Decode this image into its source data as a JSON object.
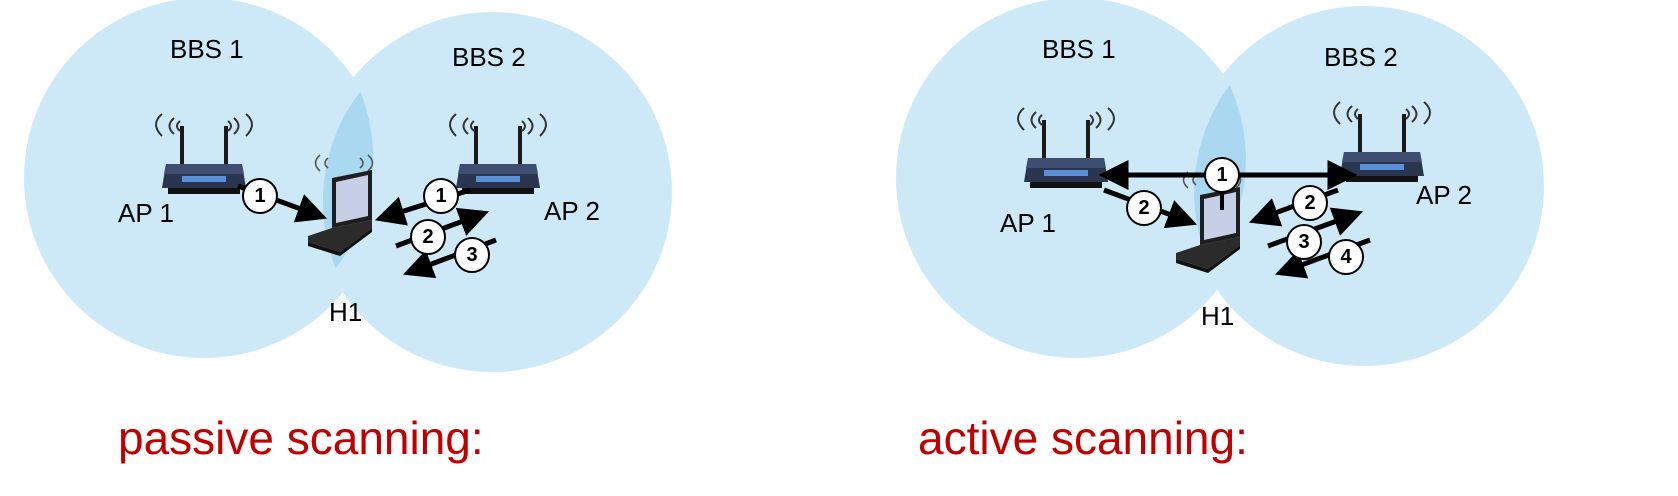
{
  "colors": {
    "bss_fill": "#cde9f7",
    "bss_overlap": "#a9d8f0",
    "caption": "#c00000",
    "router_body": "#2a3550",
    "router_accent": "#5b8fd6"
  },
  "passive": {
    "caption": "passive scanning:",
    "bss1": "BBS 1",
    "bss2": "BBS 2",
    "ap1": "AP 1",
    "ap2": "AP 2",
    "host": "H1",
    "steps": [
      "1",
      "1",
      "2",
      "3"
    ]
  },
  "active": {
    "caption": "active  scanning:",
    "bss1": "BBS 1",
    "bss2": "BBS 2",
    "ap1": "AP 1",
    "ap2": "AP 2",
    "host": "H1",
    "steps": [
      "1",
      "2",
      "2",
      "3",
      "4"
    ]
  },
  "icons": [
    "wifi-router-icon",
    "laptop-icon",
    "wifi-waves-icon"
  ]
}
